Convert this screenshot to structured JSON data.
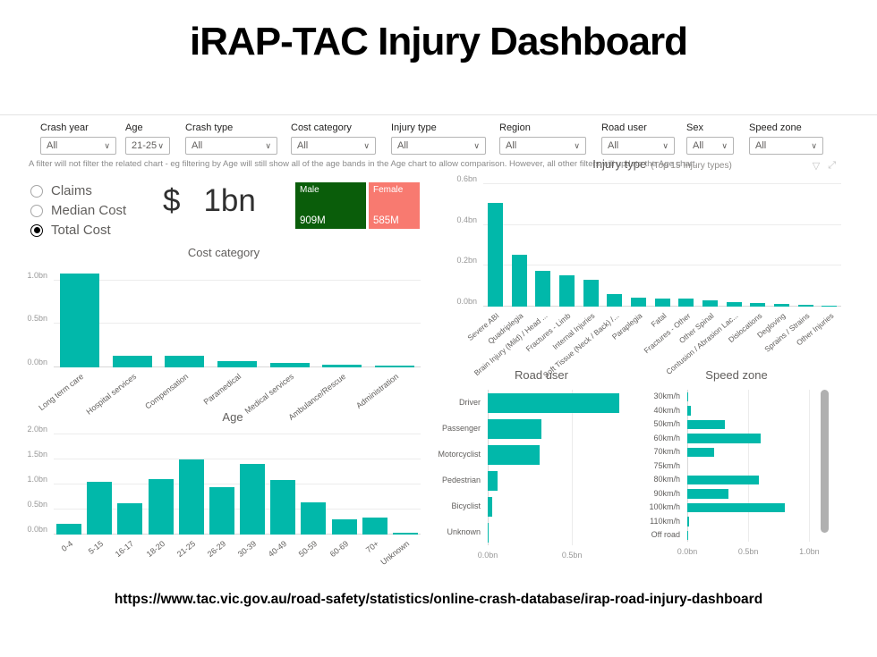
{
  "page": {
    "title": "iRAP-TAC Injury Dashboard",
    "footer_url": "https://www.tac.vic.gov.au/road-safety/statistics/online-crash-database/irap-road-injury-dashboard"
  },
  "filters": {
    "note": "A filter will not filter the related chart - eg filtering by Age will still show all of the age bands in the Age chart to allow comparison. However, all other filters will update the Age chart.",
    "items": [
      {
        "label": "Crash year",
        "value": "All"
      },
      {
        "label": "Age",
        "value": "21-25"
      },
      {
        "label": "Crash type",
        "value": "All"
      },
      {
        "label": "Cost category",
        "value": "All"
      },
      {
        "label": "Injury type",
        "value": "All"
      },
      {
        "label": "Region",
        "value": "All"
      },
      {
        "label": "Road user",
        "value": "All"
      },
      {
        "label": "Sex",
        "value": "All"
      },
      {
        "label": "Speed zone",
        "value": "All"
      }
    ]
  },
  "metric_selector": {
    "options": [
      {
        "label": "Claims",
        "selected": false
      },
      {
        "label": "Median Cost",
        "selected": false
      },
      {
        "label": "Total Cost",
        "selected": true
      }
    ]
  },
  "kpi": {
    "currency": "$",
    "value": "1bn"
  },
  "gender_cards": [
    {
      "label": "Male",
      "value": "909M",
      "color": "#0a5d0a"
    },
    {
      "label": "Female",
      "value": "585M",
      "color": "#f87a70"
    }
  ],
  "colors": {
    "accent": "#01B8AA",
    "male_card": "#0a5d0a",
    "female_card": "#f87a70"
  },
  "chart_data": [
    {
      "id": "cost_category",
      "type": "bar",
      "title": "Cost category",
      "categories": [
        "Long term care",
        "Hospital services",
        "Compensation",
        "Paramedical",
        "Medical services",
        "Ambulance/Rescue",
        "Administration"
      ],
      "values": [
        1.08,
        0.13,
        0.13,
        0.07,
        0.05,
        0.03,
        0.02
      ],
      "ylim": [
        0,
        1.15
      ],
      "yticks": [
        {
          "v": 0,
          "label": "0.0bn"
        },
        {
          "v": 0.5,
          "label": "0.5bn"
        },
        {
          "v": 1.0,
          "label": "1.0bn"
        }
      ]
    },
    {
      "id": "injury_type",
      "type": "bar",
      "title": "Injury type",
      "subtitle": "(Top 15 Injury types)",
      "categories": [
        "Severe ABI",
        "Quadriplegia",
        "Brain Injury (Mild) / Head ...",
        "Fractures - Limb",
        "Internal Injuries",
        "Soft Tissue (Neck / Back) /...",
        "Paraplegia",
        "Fatal",
        "Fractures - Other",
        "Other Spinal",
        "Contusion / Abrasion Lac...",
        "Dislocations",
        "Degloving",
        "Sprains / Strains",
        "Other Injuries"
      ],
      "values": [
        0.51,
        0.255,
        0.175,
        0.155,
        0.13,
        0.06,
        0.045,
        0.04,
        0.038,
        0.03,
        0.022,
        0.018,
        0.015,
        0.008,
        0.006
      ],
      "ylim": [
        0,
        0.6
      ],
      "yticks": [
        {
          "v": 0,
          "label": "0.0bn"
        },
        {
          "v": 0.2,
          "label": "0.2bn"
        },
        {
          "v": 0.4,
          "label": "0.4bn"
        },
        {
          "v": 0.6,
          "label": "0.6bn"
        }
      ]
    },
    {
      "id": "age",
      "type": "bar",
      "title": "Age",
      "categories": [
        "0-4",
        "5-15",
        "16-17",
        "18-20",
        "21-25",
        "26-29",
        "30-39",
        "40-49",
        "50-59",
        "60-69",
        "70+",
        "Unknown"
      ],
      "values": [
        0.22,
        1.05,
        0.63,
        1.1,
        1.5,
        0.95,
        1.41,
        1.08,
        0.64,
        0.31,
        0.34,
        0.03
      ],
      "ylim": [
        0,
        2.05
      ],
      "yticks": [
        {
          "v": 0,
          "label": "0.0bn"
        },
        {
          "v": 0.5,
          "label": "0.5bn"
        },
        {
          "v": 1.0,
          "label": "1.0bn"
        },
        {
          "v": 1.5,
          "label": "1.5bn"
        },
        {
          "v": 2.0,
          "label": "2.0bn"
        }
      ]
    },
    {
      "id": "road_user",
      "type": "hbar",
      "title": "Road user",
      "categories": [
        "Driver",
        "Passenger",
        "Motorcyclist",
        "Pedestrian",
        "Bicyclist",
        "Unknown"
      ],
      "values": [
        0.78,
        0.32,
        0.31,
        0.06,
        0.025,
        0.005
      ],
      "xlim": [
        0,
        0.85
      ],
      "xticks": [
        {
          "v": 0,
          "label": "0.0bn"
        },
        {
          "v": 0.5,
          "label": "0.5bn"
        }
      ]
    },
    {
      "id": "speed_zone",
      "type": "hbar",
      "title": "Speed zone",
      "categories": [
        "30km/h",
        "40km/h",
        "50km/h",
        "60km/h",
        "70km/h",
        "75km/h",
        "80km/h",
        "90km/h",
        "100km/h",
        "110km/h",
        "Off road"
      ],
      "values": [
        0.005,
        0.03,
        0.31,
        0.6,
        0.22,
        0,
        0.59,
        0.34,
        0.8,
        0.015,
        0.005
      ],
      "xlim": [
        0,
        1.1
      ],
      "xticks": [
        {
          "v": 0,
          "label": "0.0bn"
        },
        {
          "v": 0.5,
          "label": "0.5bn"
        },
        {
          "v": 1.0,
          "label": "1.0bn"
        }
      ]
    }
  ],
  "visual_header": {
    "icons": [
      "filter-icon",
      "focus-mode-icon"
    ]
  }
}
